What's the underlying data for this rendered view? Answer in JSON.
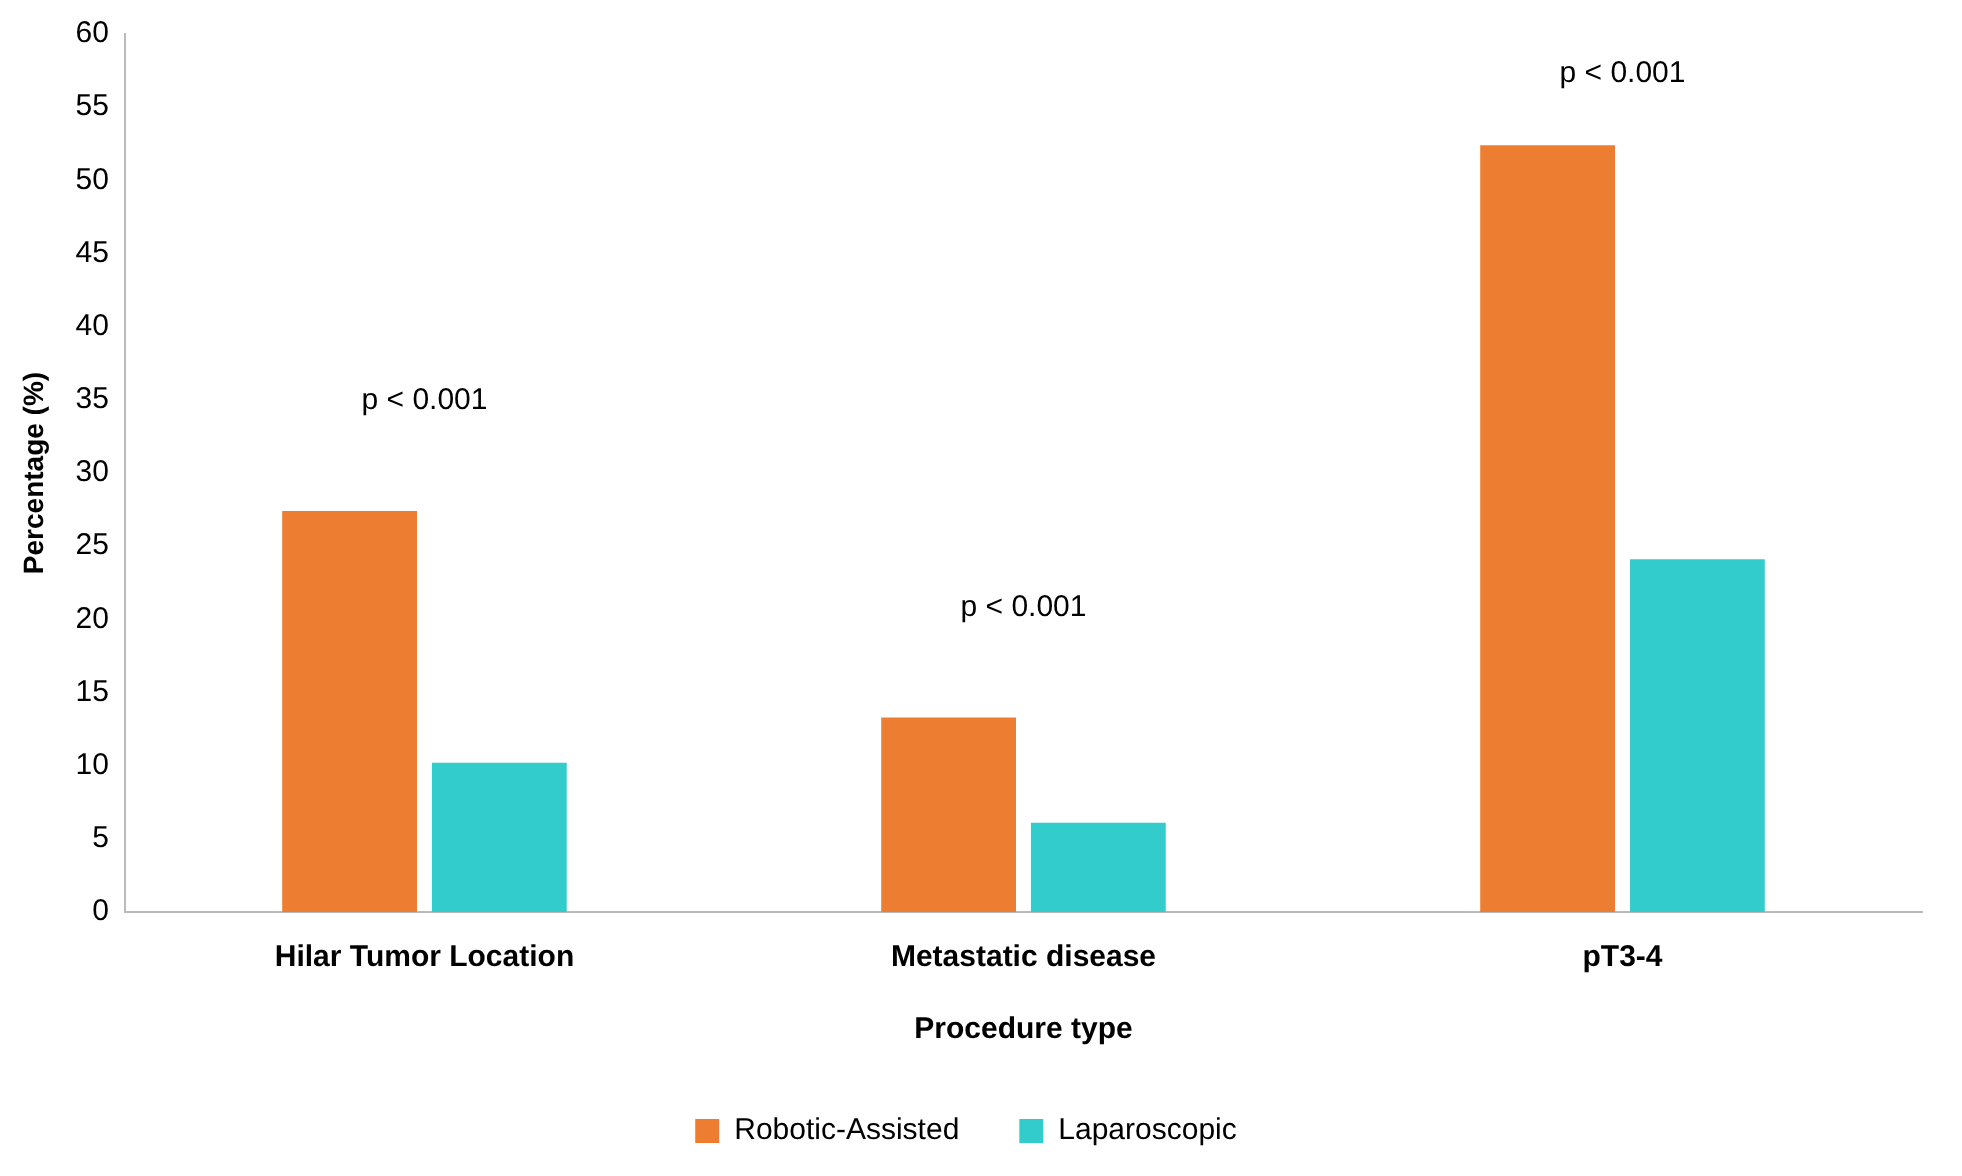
{
  "chart_data": {
    "type": "bar",
    "xlabel": "Procedure type",
    "ylabel": "Percentage (%)",
    "categories": [
      "Hilar Tumor Location",
      "Metastatic disease",
      "pT3-4"
    ],
    "series": [
      {
        "name": "Robotic-Assisted",
        "color": "#ed7d31",
        "values": [
          27.4,
          13.3,
          52.4
        ]
      },
      {
        "name": "Laparoscopic",
        "color": "#33cccc",
        "values": [
          10.2,
          6.1,
          24.1
        ]
      }
    ],
    "ylim": [
      0,
      60
    ],
    "yticks": [
      0,
      5,
      10,
      15,
      20,
      25,
      30,
      35,
      40,
      45,
      50,
      55,
      60
    ],
    "grid": false,
    "legend": "bottom",
    "annotations": [
      "p < 0.001",
      "p < 0.001",
      "p < 0.001"
    ]
  }
}
